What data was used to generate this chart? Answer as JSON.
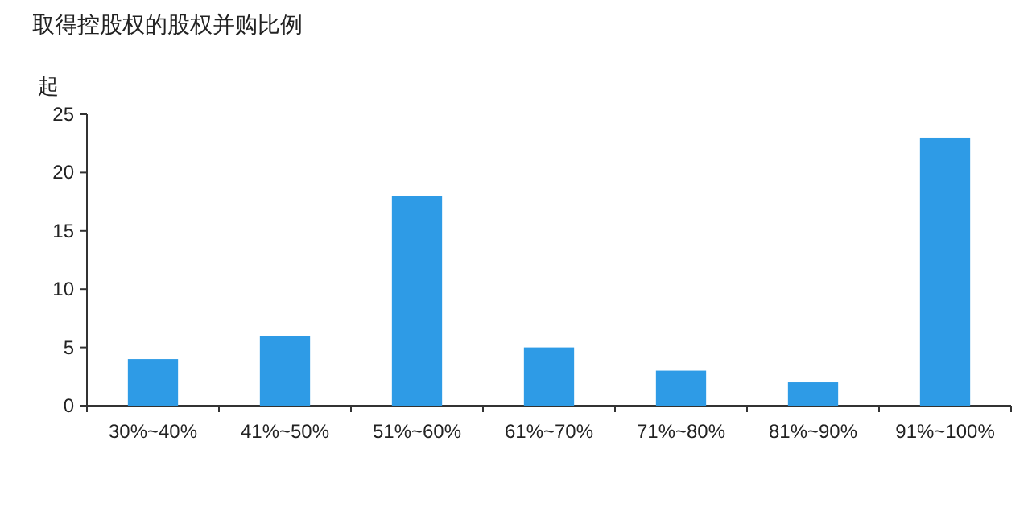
{
  "chart_data": {
    "type": "bar",
    "title": "取得控股权的股权并购比例",
    "ylabel": "起",
    "categories": [
      "30%~40%",
      "41%~50%",
      "51%~60%",
      "61%~70%",
      "71%~80%",
      "81%~90%",
      "91%~100%"
    ],
    "values": [
      4,
      6,
      18,
      5,
      3,
      2,
      23
    ],
    "color": "#2e9be6",
    "ylim": [
      0,
      25
    ],
    "yticks": [
      0,
      5,
      10,
      15,
      20,
      25
    ]
  }
}
